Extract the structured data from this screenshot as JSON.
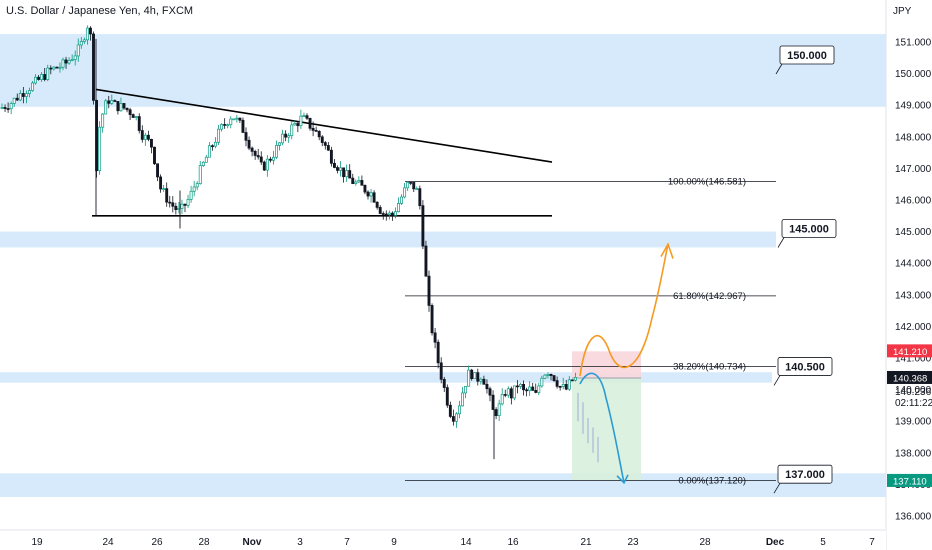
{
  "header": {
    "title": "U.S. Dollar / Japanese Yen, 4h, FXCM",
    "currency": "JPY"
  },
  "chart_data": {
    "type": "candlestick",
    "symbol": "USD/JPY",
    "timeframe": "4h",
    "source": "FXCM",
    "ylim": [
      135.7,
      152.1
    ],
    "y_ticks": [
      136.0,
      137.0,
      138.0,
      139.0,
      140.0,
      141.0,
      142.0,
      143.0,
      144.0,
      145.0,
      146.0,
      147.0,
      148.0,
      149.0,
      150.0,
      151.0
    ],
    "x_ticks": [
      "19",
      "24",
      "26",
      "28",
      "Nov",
      "3",
      "7",
      "9",
      "14",
      "16",
      "21",
      "23",
      "28",
      "Dec",
      "5",
      "7"
    ],
    "price_path": [
      [
        0,
        148.9
      ],
      [
        12,
        149.1
      ],
      [
        22,
        149.4
      ],
      [
        35,
        149.7
      ],
      [
        50,
        150.1
      ],
      [
        65,
        150.3
      ],
      [
        80,
        150.8
      ],
      [
        88,
        151.6
      ],
      [
        92,
        150.9
      ],
      [
        96,
        146.7
      ],
      [
        100,
        148.5
      ],
      [
        108,
        149.2
      ],
      [
        115,
        149.0
      ],
      [
        125,
        148.9
      ],
      [
        135,
        148.7
      ],
      [
        142,
        148.1
      ],
      [
        152,
        147.7
      ],
      [
        160,
        146.4
      ],
      [
        170,
        145.9
      ],
      [
        180,
        145.6
      ],
      [
        190,
        146.1
      ],
      [
        200,
        146.9
      ],
      [
        210,
        147.6
      ],
      [
        222,
        148.3
      ],
      [
        232,
        148.7
      ],
      [
        242,
        148.3
      ],
      [
        252,
        147.6
      ],
      [
        262,
        147.0
      ],
      [
        272,
        147.4
      ],
      [
        282,
        147.9
      ],
      [
        292,
        148.3
      ],
      [
        302,
        148.6
      ],
      [
        312,
        148.3
      ],
      [
        322,
        147.9
      ],
      [
        332,
        147.3
      ],
      [
        342,
        146.9
      ],
      [
        352,
        146.6
      ],
      [
        362,
        146.4
      ],
      [
        372,
        146.2
      ],
      [
        382,
        145.6
      ],
      [
        392,
        145.5
      ],
      [
        400,
        146.0
      ],
      [
        408,
        146.5
      ],
      [
        416,
        146.4
      ],
      [
        420,
        145.8
      ],
      [
        424,
        144.3
      ],
      [
        428,
        142.7
      ],
      [
        432,
        141.9
      ],
      [
        436,
        141.2
      ],
      [
        440,
        140.6
      ],
      [
        446,
        139.8
      ],
      [
        452,
        139.1
      ],
      [
        458,
        139.4
      ],
      [
        464,
        140.1
      ],
      [
        470,
        140.6
      ],
      [
        476,
        140.3
      ],
      [
        482,
        140.5
      ],
      [
        488,
        139.9
      ],
      [
        494,
        139.2
      ],
      [
        500,
        139.5
      ],
      [
        506,
        140.0
      ],
      [
        512,
        139.8
      ],
      [
        518,
        140.2
      ],
      [
        524,
        139.9
      ],
      [
        530,
        140.0
      ],
      [
        536,
        139.8
      ],
      [
        542,
        140.5
      ],
      [
        548,
        140.6
      ],
      [
        554,
        140.4
      ],
      [
        560,
        140.1
      ],
      [
        566,
        140.0
      ],
      [
        572,
        140.3
      ],
      [
        578,
        140.37
      ]
    ],
    "support_resistance_zones": [
      {
        "label": "150.000",
        "low": 148.95,
        "high": 151.25
      },
      {
        "label": "145.000",
        "low": 144.5,
        "high": 145.0
      },
      {
        "label": "140.500",
        "low": 140.22,
        "high": 140.55
      },
      {
        "label": "137.000",
        "low": 136.6,
        "high": 137.35
      }
    ],
    "trendlines": [
      {
        "name": "descending-trendline",
        "start": [
          96,
          149.5
        ],
        "end": [
          552,
          147.2
        ]
      },
      {
        "name": "triangle-base",
        "start": [
          92,
          145.5
        ],
        "end": [
          552,
          145.5
        ]
      }
    ],
    "fib_levels": [
      {
        "label": "100.00%(146.581)",
        "value": 146.581
      },
      {
        "label": "61.80%(142.967)",
        "value": 142.967
      },
      {
        "label": "38.20%(140.734)",
        "value": 140.734
      },
      {
        "label": "0.00%(137.120)",
        "value": 137.12
      }
    ],
    "price_labels": [
      {
        "text": "141.210",
        "value": 141.21,
        "color": "#f23645"
      },
      {
        "text": "140.368",
        "value": 140.368,
        "color": "#131722"
      },
      {
        "text": "137.110",
        "value": 137.11,
        "color": "#089981"
      }
    ],
    "current_price_sub": [
      "140.236",
      "02:11:22"
    ],
    "risk_box": {
      "stop": 141.21,
      "entry": 140.368,
      "target": 137.11
    },
    "scenario_arrows": [
      {
        "name": "bullish-scenario",
        "color": "#f59a23"
      },
      {
        "name": "bearish-scenario",
        "color": "#2b9bd3"
      }
    ],
    "colors": {
      "zone": "#d6eafb",
      "candle_up": "#089981",
      "candle_down": "#131722",
      "trendline": "#000000",
      "stop_zone": "#f8d7dc",
      "target_zone": "#d8f0dc"
    }
  }
}
